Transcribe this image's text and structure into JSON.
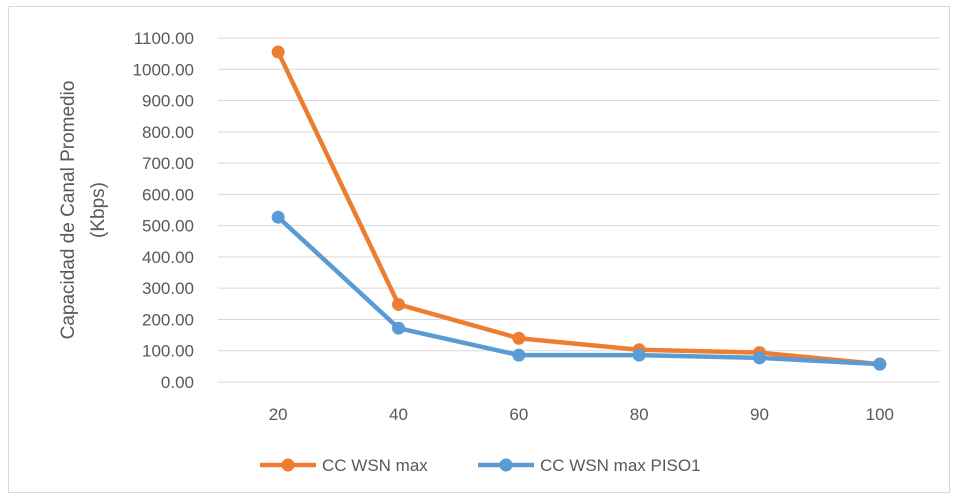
{
  "chart_data": {
    "type": "line",
    "title": "",
    "xlabel": "",
    "ylabel": [
      "Capacidad de Canal Promedio",
      "(Kbps)"
    ],
    "categories": [
      "20",
      "40",
      "60",
      "80",
      "90",
      "100"
    ],
    "ylim": [
      0,
      1100
    ],
    "ytick_step": 100,
    "ytick_labels": [
      "0.00",
      "100.00",
      "200.00",
      "300.00",
      "400.00",
      "500.00",
      "600.00",
      "700.00",
      "800.00",
      "900.00",
      "1000.00",
      "1100.00"
    ],
    "grid": true,
    "legend_position": "bottom",
    "series": [
      {
        "name": "CC WSN max",
        "color": "#ed7d31",
        "values": [
          1055,
          248,
          140,
          103,
          94,
          57
        ]
      },
      {
        "name": "CC WSN max PISO1",
        "color": "#5b9bd5",
        "values": [
          527,
          172,
          86,
          86,
          77,
          57
        ]
      }
    ]
  }
}
